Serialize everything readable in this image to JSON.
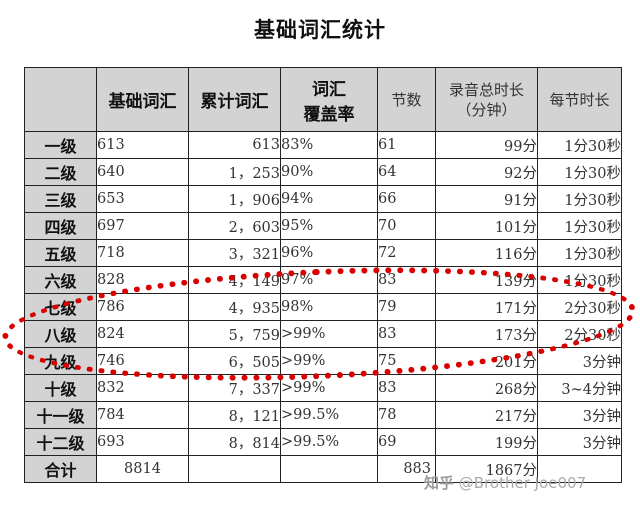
{
  "title": "基础词汇统计",
  "headers": {
    "level": "",
    "base": "基础词汇",
    "cumulative": "累计词汇",
    "coverage_l1": "词汇",
    "coverage_l2": "覆盖率",
    "sections": "节数",
    "duration_l1": "录音总时长",
    "duration_l2": "（分钟）",
    "per_section": "每节时长"
  },
  "rows": [
    {
      "level": "一级",
      "base": "613",
      "cumulative": "613",
      "coverage": "83%",
      "sections": "61",
      "duration": "99分",
      "per": "1分30秒"
    },
    {
      "level": "二级",
      "base": "640",
      "cumulative": "1，253",
      "coverage": "90%",
      "sections": "64",
      "duration": "92分",
      "per": "1分30秒"
    },
    {
      "level": "三级",
      "base": "653",
      "cumulative": "1，906",
      "coverage": "94%",
      "sections": "66",
      "duration": "91分",
      "per": "1分30秒"
    },
    {
      "level": "四级",
      "base": "697",
      "cumulative": "2，603",
      "coverage": "95%",
      "sections": "70",
      "duration": "101分",
      "per": "1分30秒"
    },
    {
      "level": "五级",
      "base": "718",
      "cumulative": "3，321",
      "coverage": "96%",
      "sections": "72",
      "duration": "116分",
      "per": "1分30秒"
    },
    {
      "level": "六级",
      "base": "828",
      "cumulative": "4，149",
      "coverage": "97%",
      "sections": "83",
      "duration": "139分",
      "per": "1分30秒"
    },
    {
      "level": "七级",
      "base": "786",
      "cumulative": "4，935",
      "coverage": "98%",
      "sections": "79",
      "duration": "171分",
      "per": "2分30秒"
    },
    {
      "level": "八级",
      "base": "824",
      "cumulative": "5，759",
      "coverage": ">99%",
      "sections": "83",
      "duration": "173分",
      "per": "2分30秒"
    },
    {
      "level": "九级",
      "base": "746",
      "cumulative": "6，505",
      "coverage": ">99%",
      "sections": "75",
      "duration": "201分",
      "per": "3分钟"
    },
    {
      "level": "十级",
      "base": "832",
      "cumulative": "7，337",
      "coverage": ">99%",
      "sections": "83",
      "duration": "268分",
      "per": "3~4分钟"
    },
    {
      "level": "十一级",
      "base": "784",
      "cumulative": "8，121",
      "coverage": ">99.5%",
      "sections": "78",
      "duration": "217分",
      "per": "3分钟"
    },
    {
      "level": "十二级",
      "base": "693",
      "cumulative": "8，814",
      "coverage": ">99.5%",
      "sections": "69",
      "duration": "199分",
      "per": "3分钟"
    }
  ],
  "total": {
    "level": "合计",
    "base": "8814",
    "cumulative": "",
    "coverage": "",
    "sections": "883",
    "duration": "1867分",
    "per": ""
  },
  "watermark": {
    "logo": "知乎",
    "text": "@Brother Joe007"
  },
  "highlight_color": "#d90000"
}
